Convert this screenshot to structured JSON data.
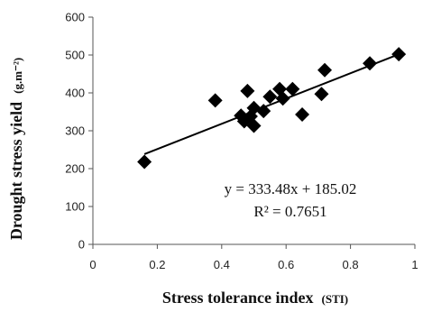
{
  "chart_data": {
    "type": "scatter",
    "xlabel": "Stress tolerance index",
    "xlabel_unit": "(STI)",
    "ylabel": "Drought stress yield",
    "ylabel_unit": "(g.m⁻²)",
    "xlim": [
      0,
      1
    ],
    "ylim": [
      0,
      600
    ],
    "x_ticks": [
      "0",
      "0.2",
      "0.4",
      "0.6",
      "0.8",
      "1"
    ],
    "y_ticks": [
      "0",
      "100",
      "200",
      "300",
      "400",
      "500",
      "600"
    ],
    "grid": false,
    "marker": "diamond",
    "marker_color": "#000000",
    "trendline": {
      "slope": 333.48,
      "intercept": 185.02
    },
    "equation": "y = 333.48x + 185.02",
    "r_squared": "R² = 0.7651",
    "points": [
      {
        "x": 0.16,
        "y": 218
      },
      {
        "x": 0.38,
        "y": 380
      },
      {
        "x": 0.46,
        "y": 340
      },
      {
        "x": 0.47,
        "y": 325
      },
      {
        "x": 0.48,
        "y": 405
      },
      {
        "x": 0.49,
        "y": 338
      },
      {
        "x": 0.5,
        "y": 360
      },
      {
        "x": 0.5,
        "y": 313
      },
      {
        "x": 0.53,
        "y": 352
      },
      {
        "x": 0.55,
        "y": 390
      },
      {
        "x": 0.58,
        "y": 410
      },
      {
        "x": 0.59,
        "y": 385
      },
      {
        "x": 0.62,
        "y": 410
      },
      {
        "x": 0.65,
        "y": 343
      },
      {
        "x": 0.71,
        "y": 397
      },
      {
        "x": 0.72,
        "y": 460
      },
      {
        "x": 0.86,
        "y": 478
      },
      {
        "x": 0.95,
        "y": 502
      }
    ]
  }
}
